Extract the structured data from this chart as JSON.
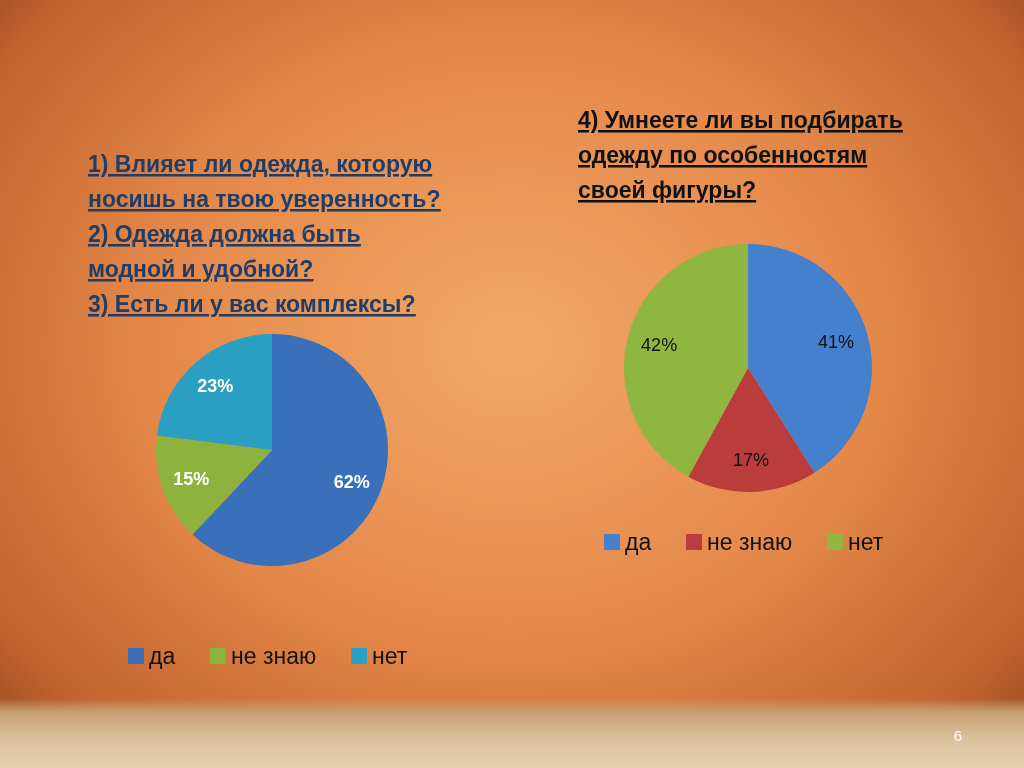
{
  "chart_data": [
    {
      "type": "pie",
      "title": "1) Влияет ли одежда, которую\nносишь на твою уверенность?\n2) Одежда должна быть\nмодной и удобной?\n3) Есть ли у вас комплексы?",
      "categories": [
        "да",
        "не знаю",
        "нет"
      ],
      "values": [
        62,
        15,
        23
      ],
      "colors": [
        "#3a6fba",
        "#8db33e",
        "#2b9fc2"
      ],
      "value_labels": [
        "62%",
        "15%",
        "23%"
      ],
      "legend": "bottom"
    },
    {
      "type": "pie",
      "title": "4) Умнеете ли вы подбирать\nодежду по особенностям\nсвоей фигуры?",
      "categories": [
        "да",
        "не знаю",
        "нет"
      ],
      "values": [
        41,
        17,
        42
      ],
      "colors": [
        "#4480cc",
        "#bb3c3c",
        "#8fb640"
      ],
      "value_labels": [
        "41%",
        "17%",
        "42%"
      ],
      "legend": "bottom",
      "annotations": [
        "6"
      ]
    }
  ]
}
